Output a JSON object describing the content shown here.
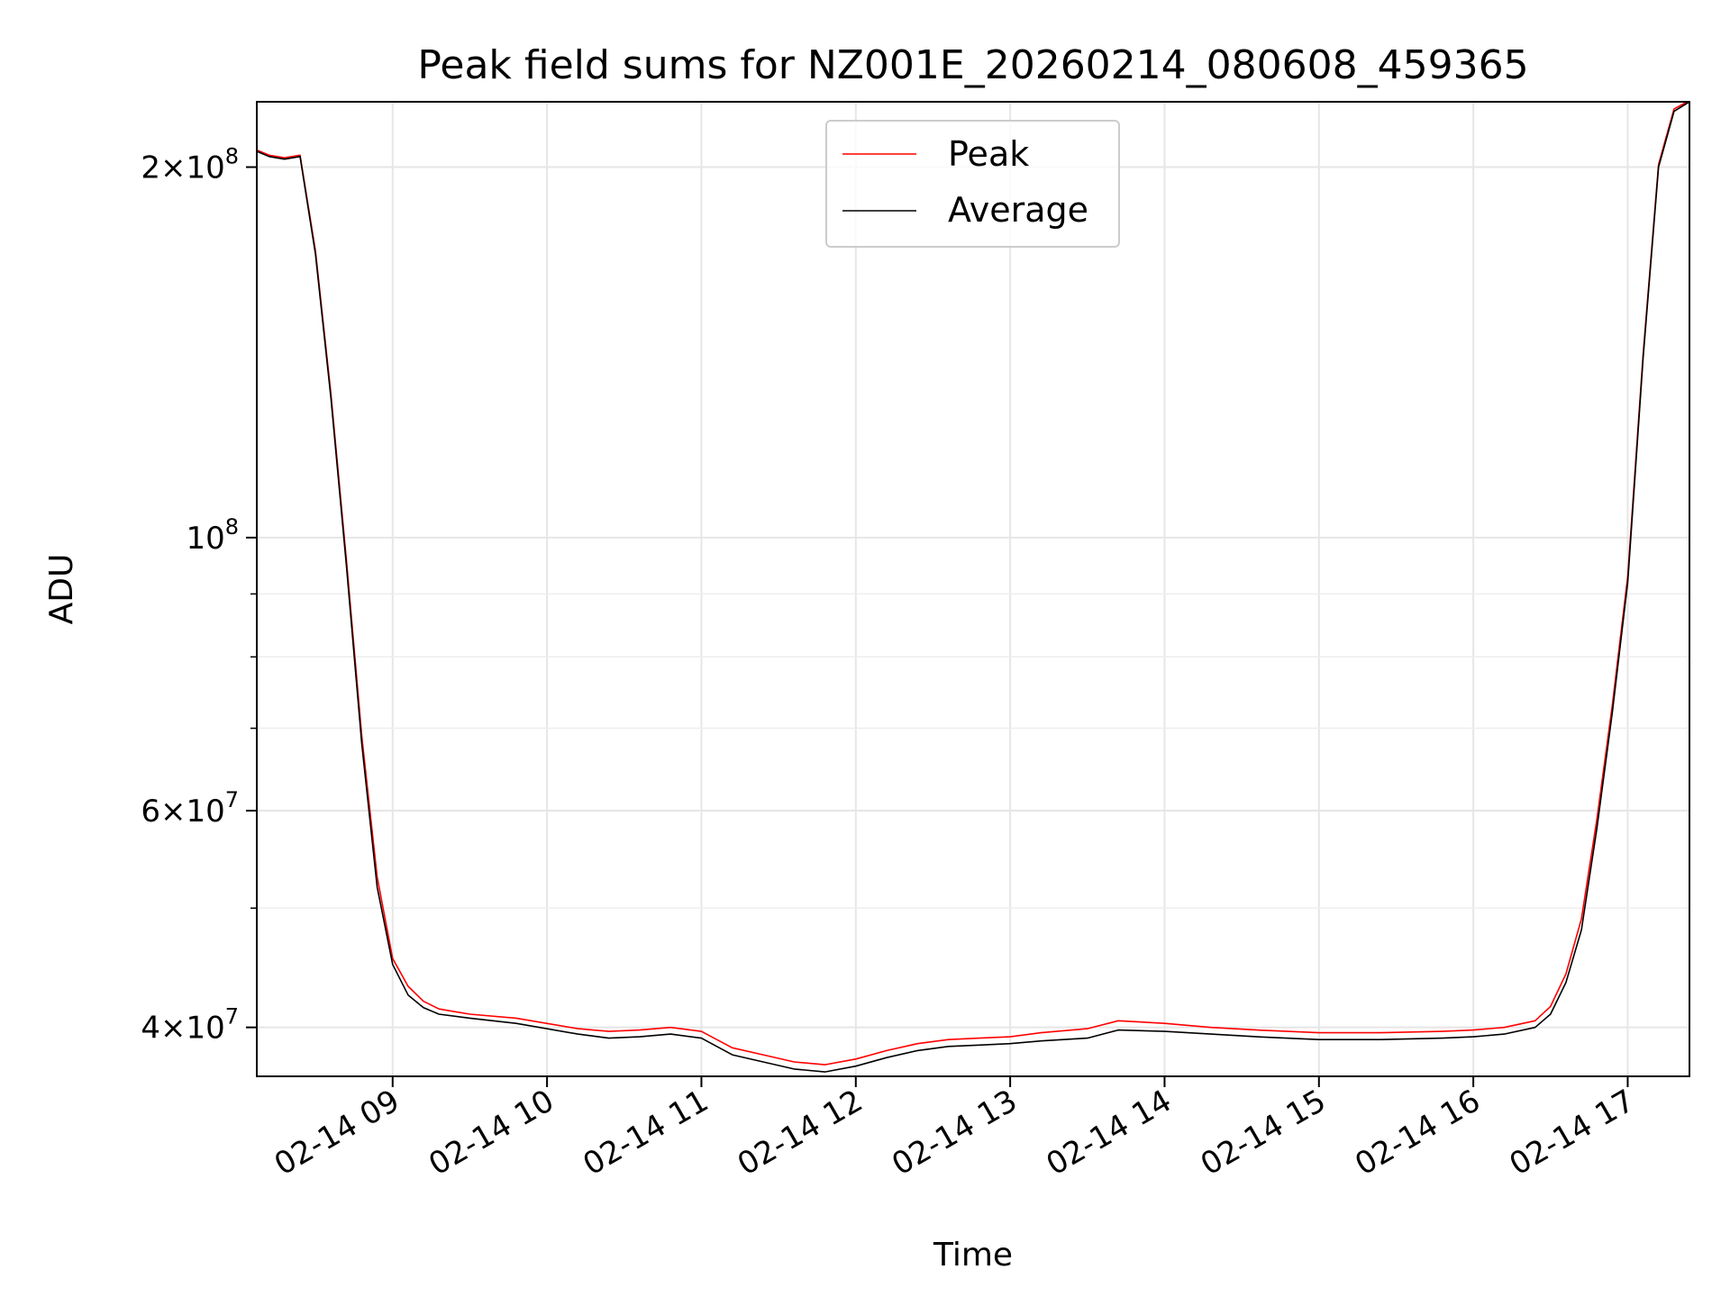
{
  "chart_data": {
    "type": "line",
    "title": "Peak field sums for NZ001E_20260214_080608_459365",
    "xlabel": "Time",
    "ylabel": "ADU",
    "yscale": "log",
    "grid": true,
    "legend_position": "top-center",
    "x_unit": "hours since 02-14 00:00",
    "xlim": [
      8.12,
      17.4
    ],
    "ylim": [
      36500000,
      226000000
    ],
    "x_ticks": [
      {
        "value": 9,
        "label": "02-14 09"
      },
      {
        "value": 10,
        "label": "02-14 10"
      },
      {
        "value": 11,
        "label": "02-14 11"
      },
      {
        "value": 12,
        "label": "02-14 12"
      },
      {
        "value": 13,
        "label": "02-14 13"
      },
      {
        "value": 14,
        "label": "02-14 14"
      },
      {
        "value": 15,
        "label": "02-14 15"
      },
      {
        "value": 16,
        "label": "02-14 16"
      },
      {
        "value": 17,
        "label": "02-14 17"
      }
    ],
    "y_ticks": [
      {
        "value": 40000000,
        "mantissa": "4",
        "exponent": "7"
      },
      {
        "value": 60000000,
        "mantissa": "6",
        "exponent": "7"
      },
      {
        "value": 100000000,
        "mantissa": "",
        "exponent": "8"
      },
      {
        "value": 200000000,
        "mantissa": "2",
        "exponent": "8"
      }
    ],
    "y_minor_ticks": [
      50000000,
      70000000,
      80000000,
      90000000
    ],
    "series": [
      {
        "name": "Average",
        "color": "#000000",
        "x": [
          8.12,
          8.2,
          8.3,
          8.4,
          8.5,
          8.6,
          8.7,
          8.8,
          8.9,
          9.0,
          9.1,
          9.2,
          9.3,
          9.5,
          9.8,
          10.2,
          10.4,
          10.6,
          10.8,
          11.0,
          11.2,
          11.4,
          11.6,
          11.8,
          12.0,
          12.2,
          12.4,
          12.6,
          12.8,
          13.0,
          13.2,
          13.5,
          13.7,
          14.0,
          14.3,
          14.6,
          15.0,
          15.4,
          15.8,
          16.0,
          16.2,
          16.4,
          16.5,
          16.6,
          16.7,
          16.8,
          16.9,
          17.0,
          17.1,
          17.2,
          17.3,
          17.4
        ],
        "values": [
          206000000,
          204000000,
          203000000,
          204000000,
          170000000,
          130000000,
          95000000,
          68000000,
          52000000,
          45000000,
          42500000,
          41500000,
          41000000,
          40700000,
          40300000,
          39500000,
          39200000,
          39300000,
          39500000,
          39200000,
          38000000,
          37500000,
          37000000,
          36800000,
          37200000,
          37800000,
          38300000,
          38600000,
          38700000,
          38800000,
          39000000,
          39200000,
          39800000,
          39700000,
          39500000,
          39300000,
          39100000,
          39100000,
          39200000,
          39300000,
          39500000,
          40000000,
          41000000,
          43500000,
          48000000,
          58000000,
          72000000,
          92000000,
          140000000,
          200000000,
          222000000,
          226000000
        ]
      },
      {
        "name": "Peak",
        "color": "#ff0000",
        "x": [
          8.12,
          8.2,
          8.3,
          8.4,
          8.5,
          8.6,
          8.7,
          8.8,
          8.9,
          9.0,
          9.1,
          9.2,
          9.3,
          9.5,
          9.8,
          10.2,
          10.4,
          10.6,
          10.8,
          11.0,
          11.2,
          11.4,
          11.6,
          11.8,
          12.0,
          12.2,
          12.4,
          12.6,
          12.8,
          13.0,
          13.2,
          13.5,
          13.7,
          14.0,
          14.3,
          14.6,
          15.0,
          15.4,
          15.8,
          16.0,
          16.2,
          16.4,
          16.5,
          16.6,
          16.7,
          16.8,
          16.9,
          17.0,
          17.1,
          17.2,
          17.3,
          17.4
        ],
        "values": [
          206500000,
          204500000,
          203500000,
          204500000,
          171000000,
          131000000,
          96000000,
          69000000,
          53000000,
          45500000,
          43200000,
          42000000,
          41400000,
          41000000,
          40700000,
          39900000,
          39700000,
          39800000,
          40000000,
          39700000,
          38500000,
          38000000,
          37500000,
          37300000,
          37700000,
          38300000,
          38800000,
          39100000,
          39200000,
          39300000,
          39600000,
          39900000,
          40500000,
          40300000,
          40000000,
          39800000,
          39600000,
          39600000,
          39700000,
          39800000,
          40000000,
          40500000,
          41600000,
          44200000,
          49000000,
          59000000,
          73000000,
          93000000,
          141000000,
          201000000,
          223000000,
          226500000
        ]
      }
    ]
  }
}
